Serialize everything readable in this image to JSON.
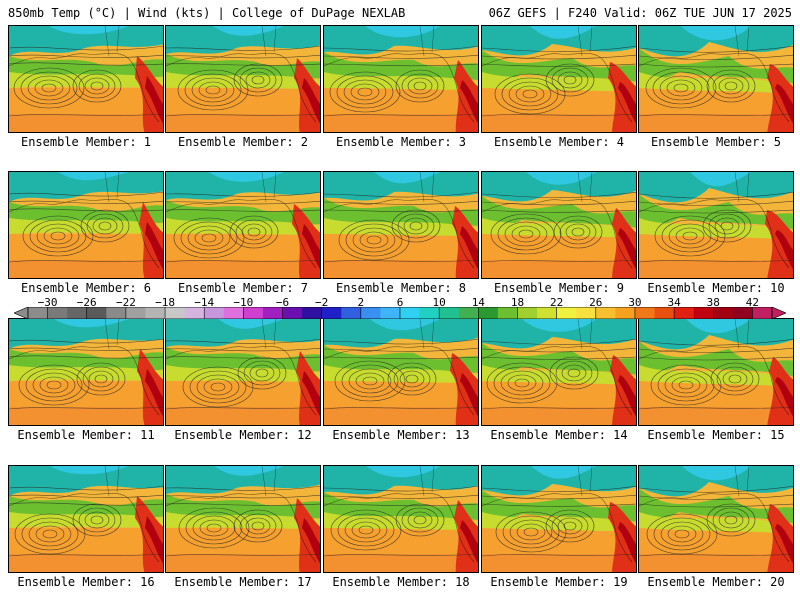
{
  "header": {
    "left": "850mb Temp (°C) | Wind (kts) | College of DuPage NEXLAB",
    "right": "06Z GEFS | F240 Valid: 06Z TUE JUN 17 2025"
  },
  "members": [
    "Ensemble Member: 1",
    "Ensemble Member: 2",
    "Ensemble Member: 3",
    "Ensemble Member: 4",
    "Ensemble Member: 5",
    "Ensemble Member: 6",
    "Ensemble Member: 7",
    "Ensemble Member: 8",
    "Ensemble Member: 9",
    "Ensemble Member: 10",
    "Ensemble Member: 11",
    "Ensemble Member: 12",
    "Ensemble Member: 13",
    "Ensemble Member: 14",
    "Ensemble Member: 15",
    "Ensemble Member: 16",
    "Ensemble Member: 17",
    "Ensemble Member: 18",
    "Ensemble Member: 19",
    "Ensemble Member: 20"
  ],
  "colorbar": {
    "ticks": [
      "−30",
      "−26",
      "−22",
      "−18",
      "−14",
      "−10",
      "−6",
      "−2",
      "2",
      "6",
      "10",
      "14",
      "18",
      "22",
      "26",
      "30",
      "34",
      "38",
      "42"
    ],
    "tick_values": [
      -30,
      -26,
      -22,
      -18,
      -14,
      -10,
      -6,
      -2,
      2,
      6,
      10,
      14,
      18,
      22,
      26,
      30,
      34,
      38,
      42
    ],
    "min": -32,
    "max": 44,
    "step": 2,
    "colors": [
      "#8c8c8c",
      "#7a7a7a",
      "#666666",
      "#5a5a5a",
      "#8a8a8a",
      "#a0a0a0",
      "#b4b4b4",
      "#c8c8c8",
      "#d6b4e0",
      "#c896dc",
      "#e070e0",
      "#d040d0",
      "#a020c0",
      "#6a10b0",
      "#3010a0",
      "#2020c8",
      "#3060e0",
      "#3a90f0",
      "#40b4f8",
      "#30d0f0",
      "#20d0c0",
      "#20c090",
      "#40b050",
      "#2a9a30",
      "#6cc030",
      "#a0d030",
      "#d0e030",
      "#f0f040",
      "#f8e040",
      "#f8c030",
      "#f8a020",
      "#f07818",
      "#e85010",
      "#e02010",
      "#c00010",
      "#a00010",
      "#900020",
      "#c02060"
    ]
  }
}
